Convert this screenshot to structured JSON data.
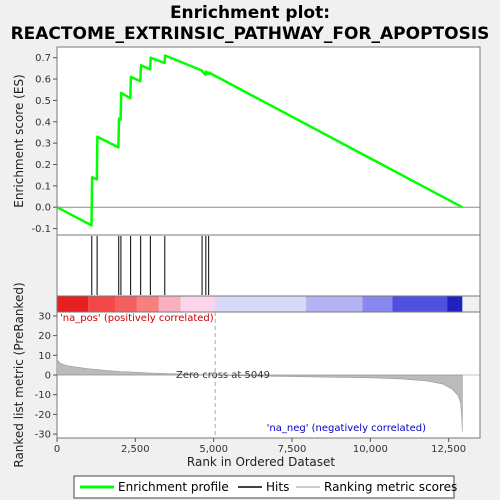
{
  "chart_data": {
    "type": "line",
    "title_line1": "Enrichment plot:",
    "title_line2": "REACTOME_EXTRINSIC_PATHWAY_FOR_APOPTOSIS",
    "top_panel": {
      "ylabel": "Enrichment score (ES)",
      "ylim": [
        -0.13,
        0.75
      ],
      "yticks": [
        -0.1,
        0.0,
        0.1,
        0.2,
        0.3,
        0.4,
        0.5,
        0.6,
        0.7
      ],
      "ytick_labels": [
        "-0.1",
        "0.0",
        "0.1",
        "0.2",
        "0.3",
        "0.4",
        "0.5",
        "0.6",
        "0.7"
      ],
      "series": {
        "name": "Enrichment profile",
        "color": "#00ff00",
        "x": [
          0,
          1100,
          1120,
          1270,
          1290,
          1960,
          1980,
          2030,
          2050,
          2340,
          2360,
          2660,
          2680,
          2970,
          2990,
          3430,
          3450,
          4620,
          4640,
          4740,
          4760,
          4830,
          4850,
          12935
        ],
        "y": [
          0.0,
          -0.085,
          0.14,
          0.13,
          0.33,
          0.28,
          0.415,
          0.41,
          0.535,
          0.51,
          0.61,
          0.59,
          0.665,
          0.645,
          0.7,
          0.675,
          0.71,
          0.64,
          0.635,
          0.62,
          0.635,
          0.625,
          0.63,
          0.0
        ]
      }
    },
    "hits": {
      "name": "Hits",
      "positions": [
        1110,
        1280,
        1970,
        2040,
        2350,
        2670,
        2980,
        3440,
        4630,
        4750,
        4840
      ]
    },
    "bottom_panel": {
      "ylabel": "Ranked list metric (PreRanked)",
      "ylim": [
        -32,
        32
      ],
      "yticks": [
        -30,
        -20,
        -10,
        0,
        10,
        20,
        30
      ],
      "ytick_labels": [
        "-30",
        "-20",
        "-10",
        "0",
        "10",
        "20",
        "30"
      ],
      "series": {
        "name": "Ranking metric scores",
        "color": "#bbbbbb",
        "x": [
          0,
          100,
          300,
          600,
          1000,
          1500,
          2000,
          3000,
          4000,
          5049,
          6000,
          8000,
          10000,
          11000,
          11800,
          12300,
          12600,
          12800,
          12880,
          12920,
          12935
        ],
        "y": [
          8.0,
          6.0,
          4.8,
          4.0,
          3.2,
          2.4,
          1.8,
          1.0,
          0.5,
          0.0,
          -0.4,
          -0.9,
          -1.4,
          -2.0,
          -3.0,
          -4.5,
          -7.0,
          -10.5,
          -14.0,
          -22.0,
          -29.0
        ]
      },
      "pos_label": "'na_pos' (positively correlated)",
      "neg_label": "'na_neg' (negatively correlated)",
      "zero_cross_label": "Zero cross at 5049",
      "zero_cross": 5049
    },
    "xaxis": {
      "label": "Rank in Ordered Dataset",
      "xlim": [
        0,
        13500
      ],
      "xticks": [
        0,
        2500,
        5000,
        7500,
        10000,
        12500
      ],
      "xtick_labels": [
        "0",
        "2,500",
        "5,000",
        "7,500",
        "10,000",
        "12,500"
      ]
    },
    "color_bar": {
      "max_rank": 12935,
      "segments": [
        {
          "end": 1000,
          "color": "#e82020"
        },
        {
          "end": 1850,
          "color": "#f24848"
        },
        {
          "end": 2550,
          "color": "#f46060"
        },
        {
          "end": 3250,
          "color": "#f68080"
        },
        {
          "end": 3950,
          "color": "#f8b0c0"
        },
        {
          "end": 5049,
          "color": "#fcd4ec"
        },
        {
          "end": 7950,
          "color": "#d8d8f8"
        },
        {
          "end": 9750,
          "color": "#b4b4f4"
        },
        {
          "end": 10700,
          "color": "#8888ee"
        },
        {
          "end": 12450,
          "color": "#5050e0"
        },
        {
          "end": 12935,
          "color": "#2020c0"
        }
      ]
    },
    "legend": {
      "items": [
        {
          "label": "Enrichment profile",
          "color": "#00ff00"
        },
        {
          "label": "Hits",
          "color": "#000000"
        },
        {
          "label": "Ranking metric scores",
          "color": "#bbbbbb"
        }
      ]
    }
  }
}
